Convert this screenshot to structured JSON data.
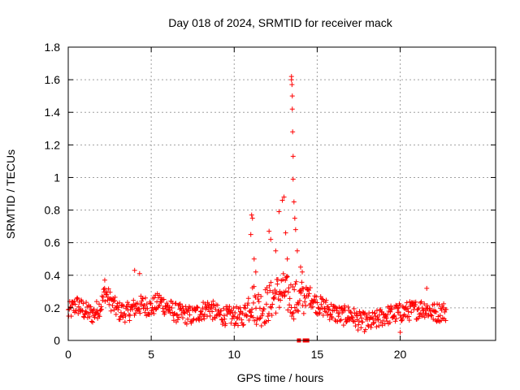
{
  "chart_data": {
    "type": "scatter",
    "title": "Day 018 of 2024, SRMTID for receiver mack",
    "xlabel": "GPS time / hours",
    "ylabel": "SRMTID / TECUs",
    "xlim": [
      0,
      25.75
    ],
    "ylim": [
      0,
      1.8
    ],
    "x_ticks": [
      "0",
      "5",
      "10",
      "15",
      "20"
    ],
    "x_tick_values": [
      0,
      5,
      10,
      15,
      20
    ],
    "y_ticks": [
      "0",
      "0.2",
      "0.4",
      "0.6",
      "0.8",
      "1",
      "1.2",
      "1.4",
      "1.6",
      "1.8"
    ],
    "y_tick_values": [
      0,
      0.2,
      0.4,
      0.6,
      0.8,
      1.0,
      1.2,
      1.4,
      1.6,
      1.8
    ],
    "grid": true,
    "marker": "+",
    "color": "#ff0000",
    "series": [
      {
        "name": "SRMTID",
        "profile": {
          "x": [
            0,
            0.5,
            1,
            1.5,
            2,
            2.2,
            2.5,
            3,
            3.5,
            4,
            4.5,
            5,
            5.5,
            6,
            6.5,
            7,
            7.5,
            8,
            8.5,
            9,
            9.5,
            10,
            10.5,
            11,
            11.5,
            12,
            12.5,
            13,
            13.5,
            14,
            14.5,
            15,
            15.5,
            16,
            16.5,
            17,
            17.5,
            18,
            18.5,
            19,
            19.5,
            20,
            20.5,
            21,
            21.5,
            22,
            22.8
          ],
          "y": [
            0.17,
            0.22,
            0.18,
            0.16,
            0.22,
            0.3,
            0.25,
            0.18,
            0.17,
            0.2,
            0.22,
            0.2,
            0.24,
            0.2,
            0.17,
            0.16,
            0.15,
            0.18,
            0.2,
            0.16,
            0.15,
            0.15,
            0.14,
            0.25,
            0.2,
            0.22,
            0.28,
            0.3,
            0.25,
            0.25,
            0.28,
            0.22,
            0.2,
            0.17,
            0.15,
            0.16,
            0.12,
            0.11,
            0.12,
            0.15,
            0.16,
            0.17,
            0.18,
            0.19,
            0.2,
            0.17,
            0.18
          ]
        },
        "peaks": [
          {
            "x": 4.0,
            "y": 0.43
          },
          {
            "x": 4.3,
            "y": 0.41
          },
          {
            "x": 2.2,
            "y": 0.37
          },
          {
            "x": 11.05,
            "y": 0.77
          },
          {
            "x": 11.1,
            "y": 0.75
          },
          {
            "x": 11.0,
            "y": 0.65
          },
          {
            "x": 11.2,
            "y": 0.5
          },
          {
            "x": 11.3,
            "y": 0.42
          },
          {
            "x": 12.1,
            "y": 0.67
          },
          {
            "x": 12.2,
            "y": 0.62
          },
          {
            "x": 12.5,
            "y": 0.55
          },
          {
            "x": 12.7,
            "y": 0.79
          },
          {
            "x": 12.9,
            "y": 0.86
          },
          {
            "x": 13.0,
            "y": 0.88
          },
          {
            "x": 13.1,
            "y": 0.66
          },
          {
            "x": 13.2,
            "y": 0.5
          },
          {
            "x": 13.45,
            "y": 1.62
          },
          {
            "x": 13.45,
            "y": 1.6
          },
          {
            "x": 13.48,
            "y": 1.57
          },
          {
            "x": 13.5,
            "y": 1.5
          },
          {
            "x": 13.5,
            "y": 1.42
          },
          {
            "x": 13.52,
            "y": 1.28
          },
          {
            "x": 13.55,
            "y": 1.13
          },
          {
            "x": 13.55,
            "y": 0.99
          },
          {
            "x": 13.6,
            "y": 0.85
          },
          {
            "x": 13.65,
            "y": 0.75
          },
          {
            "x": 13.7,
            "y": 0.68
          },
          {
            "x": 13.8,
            "y": 0.55
          },
          {
            "x": 14.0,
            "y": 0.45
          },
          {
            "x": 14.1,
            "y": 0.42
          },
          {
            "x": 21.6,
            "y": 0.32
          },
          {
            "x": 20.0,
            "y": 0.05
          }
        ],
        "zero_markers": [
          13.9,
          14.25,
          14.4
        ]
      }
    ]
  }
}
